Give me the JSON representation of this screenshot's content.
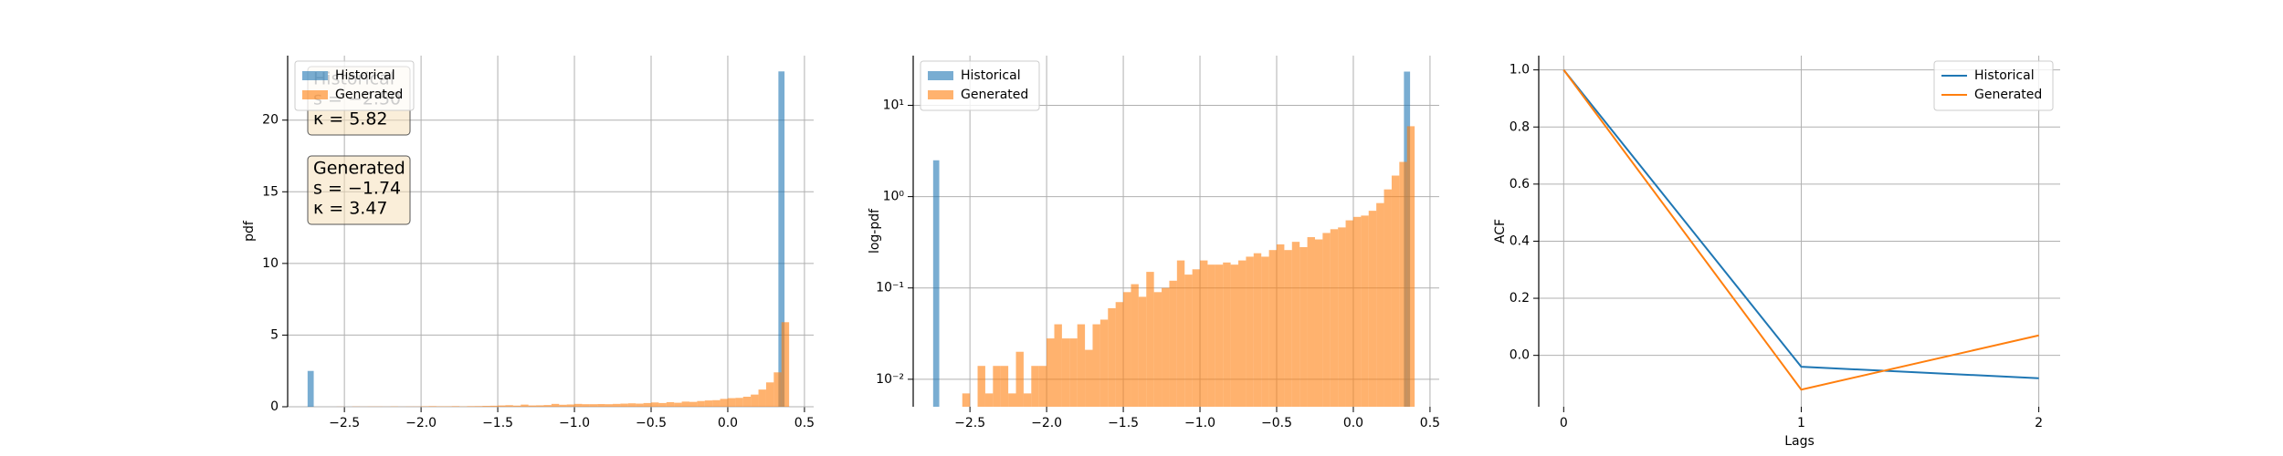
{
  "chart_data": [
    {
      "type": "histogram",
      "ylabel": "pdf",
      "log_y": false,
      "grid": true,
      "legend": "upper left",
      "xlim": [
        -2.87,
        0.56
      ],
      "ylim": [
        0,
        24.5
      ],
      "xticks": [
        {
          "value": -2.5,
          "label": "−2.5"
        },
        {
          "value": -2.0,
          "label": "−2.0"
        },
        {
          "value": -1.5,
          "label": "−1.5"
        },
        {
          "value": -1.0,
          "label": "−1.0"
        },
        {
          "value": -0.5,
          "label": "−0.5"
        },
        {
          "value": 0,
          "label": "0.0"
        },
        0.5
      ],
      "yticks": [
        0,
        5,
        10,
        15,
        20
      ],
      "series": [
        {
          "name": "Historical",
          "color": "#1f77b4",
          "bins": [
            -2.74,
            -2.7,
            0.33,
            0.37
          ],
          "values": [
            2.5,
            0,
            23.4
          ]
        },
        {
          "name": "Generated",
          "color": "#ff7f0e",
          "bins": [
            -2.6,
            -2.55,
            -2.5,
            -2.45,
            -2.4,
            -2.35,
            -2.3,
            -2.25,
            -2.2,
            -2.15,
            -2.1,
            -2.05,
            -2.0,
            -1.95,
            -1.9,
            -1.85,
            -1.8,
            -1.75,
            -1.7,
            -1.65,
            -1.6,
            -1.55,
            -1.5,
            -1.45,
            -1.4,
            -1.35,
            -1.3,
            -1.25,
            -1.2,
            -1.15,
            -1.1,
            -1.05,
            -1.0,
            -0.95,
            -0.9,
            -0.85,
            -0.8,
            -0.75,
            -0.7,
            -0.65,
            -0.6,
            -0.55,
            -0.5,
            -0.45,
            -0.4,
            -0.35,
            -0.3,
            -0.25,
            -0.2,
            -0.15,
            -0.1,
            -0.05,
            0.0,
            0.05,
            0.1,
            0.15,
            0.2,
            0.25,
            0.3,
            0.35,
            0.4
          ],
          "values": [
            0,
            0.007,
            0,
            0.014,
            0.007,
            0.014,
            0.014,
            0.007,
            0.02,
            0.007,
            0.014,
            0.014,
            0.028,
            0.04,
            0.028,
            0.028,
            0.04,
            0.021,
            0.04,
            0.045,
            0.06,
            0.07,
            0.09,
            0.11,
            0.08,
            0.15,
            0.09,
            0.1,
            0.12,
            0.2,
            0.14,
            0.16,
            0.2,
            0.18,
            0.18,
            0.19,
            0.18,
            0.2,
            0.22,
            0.24,
            0.22,
            0.26,
            0.3,
            0.26,
            0.32,
            0.28,
            0.36,
            0.34,
            0.4,
            0.44,
            0.46,
            0.55,
            0.6,
            0.62,
            0.7,
            0.85,
            1.2,
            1.7,
            2.4,
            5.9
          ]
        }
      ],
      "annotations": [
        {
          "lines": [
            "Historical",
            "s = −2.50",
            "κ = 5.82"
          ]
        },
        {
          "lines": [
            "Generated",
            "s = −1.74",
            "κ = 3.47"
          ]
        }
      ]
    },
    {
      "type": "histogram",
      "ylabel": "log-pdf",
      "log_y": true,
      "grid": true,
      "legend": "upper left",
      "xlim": [
        -2.87,
        0.56
      ],
      "ylim": [
        0.005,
        35
      ],
      "xticks": [
        {
          "value": -2.5,
          "label": "−2.5"
        },
        {
          "value": -2.0,
          "label": "−2.0"
        },
        {
          "value": -1.5,
          "label": "−1.5"
        },
        {
          "value": -1.0,
          "label": "−1.0"
        },
        {
          "value": -0.5,
          "label": "−0.5"
        },
        {
          "value": 0,
          "label": "0.0"
        },
        0.5
      ],
      "yticks": [
        {
          "value": 0.01,
          "label": "10⁻²"
        },
        {
          "value": 0.1,
          "label": "10⁻¹"
        },
        {
          "value": 1,
          "label": "10⁰"
        },
        {
          "value": 10,
          "label": "10¹"
        }
      ],
      "series": [
        {
          "name": "Historical",
          "color": "#1f77b4",
          "bins": [
            -2.74,
            -2.7,
            0.33,
            0.37
          ],
          "values": [
            2.5,
            0,
            23.4
          ]
        },
        {
          "name": "Generated",
          "color": "#ff7f0e",
          "bins": [
            -2.6,
            -2.55,
            -2.5,
            -2.45,
            -2.4,
            -2.35,
            -2.3,
            -2.25,
            -2.2,
            -2.15,
            -2.1,
            -2.05,
            -2.0,
            -1.95,
            -1.9,
            -1.85,
            -1.8,
            -1.75,
            -1.7,
            -1.65,
            -1.6,
            -1.55,
            -1.5,
            -1.45,
            -1.4,
            -1.35,
            -1.3,
            -1.25,
            -1.2,
            -1.15,
            -1.1,
            -1.05,
            -1.0,
            -0.95,
            -0.9,
            -0.85,
            -0.8,
            -0.75,
            -0.7,
            -0.65,
            -0.6,
            -0.55,
            -0.5,
            -0.45,
            -0.4,
            -0.35,
            -0.3,
            -0.25,
            -0.2,
            -0.15,
            -0.1,
            -0.05,
            0.0,
            0.05,
            0.1,
            0.15,
            0.2,
            0.25,
            0.3,
            0.35,
            0.4
          ],
          "values": [
            0,
            0.007,
            0,
            0.014,
            0.007,
            0.014,
            0.014,
            0.007,
            0.02,
            0.007,
            0.014,
            0.014,
            0.028,
            0.04,
            0.028,
            0.028,
            0.04,
            0.021,
            0.04,
            0.045,
            0.06,
            0.07,
            0.09,
            0.11,
            0.08,
            0.15,
            0.09,
            0.1,
            0.12,
            0.2,
            0.14,
            0.16,
            0.2,
            0.18,
            0.18,
            0.19,
            0.18,
            0.2,
            0.22,
            0.24,
            0.22,
            0.26,
            0.3,
            0.26,
            0.32,
            0.28,
            0.36,
            0.34,
            0.4,
            0.44,
            0.46,
            0.55,
            0.6,
            0.62,
            0.7,
            0.85,
            1.2,
            1.7,
            2.4,
            5.9
          ]
        }
      ]
    },
    {
      "type": "line",
      "ylabel": "ACF",
      "xlabel": "Lags",
      "log_y": false,
      "grid": true,
      "legend": "upper right",
      "x": [
        0,
        1,
        2
      ],
      "xlim": [
        -0.105,
        2.09
      ],
      "ylim": [
        -0.18,
        1.05
      ],
      "xticks": [
        0,
        1,
        2
      ],
      "yticks": [
        {
          "value": 0,
          "label": "0.0"
        },
        0.2,
        0.4,
        0.6,
        0.8,
        {
          "value": 1,
          "label": "1.0"
        }
      ],
      "series": [
        {
          "name": "Historical",
          "color": "#1f77b4",
          "values": [
            1.0,
            -0.04,
            -0.08
          ]
        },
        {
          "name": "Generated",
          "color": "#ff7f0e",
          "values": [
            1.0,
            -0.12,
            0.07
          ]
        }
      ]
    }
  ]
}
